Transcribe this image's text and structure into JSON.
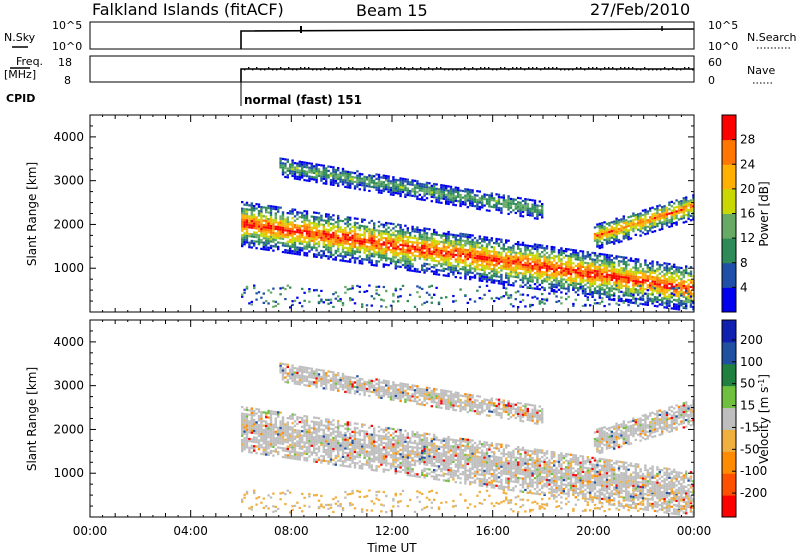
{
  "header": {
    "station": "Falkland Islands (fitACF)",
    "beam": "Beam 15",
    "date": "27/Feb/2010"
  },
  "strips": {
    "nsky": {
      "label": "N.Sky",
      "ticks": [
        "10^5",
        "10^0"
      ]
    },
    "nsearch": {
      "label": "N.Search",
      "ticks": [
        "10^5",
        "10^0"
      ]
    },
    "freq": {
      "label_line1": "Freq.",
      "label_line2": "[MHz]",
      "ticks": [
        "18",
        "8"
      ]
    },
    "nave": {
      "label": "Nave",
      "ticks": [
        "60",
        "0"
      ]
    },
    "cpid": {
      "label": "CPID",
      "value": "normal (fast) 151"
    }
  },
  "colors": {
    "power_scale": [
      "#0000ee",
      "#1f4fa8",
      "#2e8b57",
      "#66aa66",
      "#c8d800",
      "#ffb000",
      "#ff7700",
      "#ff0000"
    ],
    "velocity_scale": [
      "#1020b0",
      "#2050a0",
      "#208040",
      "#70c040",
      "#bebebe",
      "#f0b040",
      "#ff8c00",
      "#ff5000",
      "#ff0000"
    ]
  },
  "chart_data": [
    {
      "type": "heatmap",
      "title": "Power",
      "ylabel": "Slant Range [km]",
      "ylim": [
        0,
        4500
      ],
      "yticks": [
        "1000",
        "2000",
        "3000",
        "4000"
      ],
      "xlim": [
        "00:00",
        "24:00"
      ],
      "colorbar": {
        "label": "Power [dB]",
        "ticks": [
          "4",
          "8",
          "12",
          "16",
          "20",
          "24",
          "28"
        ],
        "range": [
          0,
          32
        ]
      },
      "features": [
        {
          "name": "main echo band",
          "start_ut": 6.0,
          "end_ut": 24.0,
          "start_range_km": 2000,
          "end_range_km": 500,
          "peak_power_db": 30
        },
        {
          "name": "upper echo band",
          "start_ut": 7.5,
          "end_ut": 18.0,
          "start_range_km": 3300,
          "end_range_km": 2300,
          "peak_power_db": 14
        },
        {
          "name": "late echo band",
          "start_ut": 20.0,
          "end_ut": 24.0,
          "start_range_km": 1700,
          "end_range_km": 2400,
          "peak_power_db": 26
        }
      ]
    },
    {
      "type": "heatmap",
      "title": "Velocity",
      "ylabel": "Slant Range [km]",
      "ylim": [
        0,
        4500
      ],
      "yticks": [
        "1000",
        "2000",
        "3000",
        "4000"
      ],
      "xlim": [
        "00:00",
        "24:00"
      ],
      "xlabel": "Time UT",
      "xticks": [
        "00:00",
        "04:00",
        "08:00",
        "12:00",
        "16:00",
        "20:00",
        "00:00"
      ],
      "colorbar": {
        "label": "Velocity [m s^-1]",
        "ticks": [
          "200",
          "100",
          "50",
          "15",
          "-15",
          "-50",
          "-100",
          "-200"
        ],
        "range": [
          -250,
          250
        ]
      }
    }
  ]
}
